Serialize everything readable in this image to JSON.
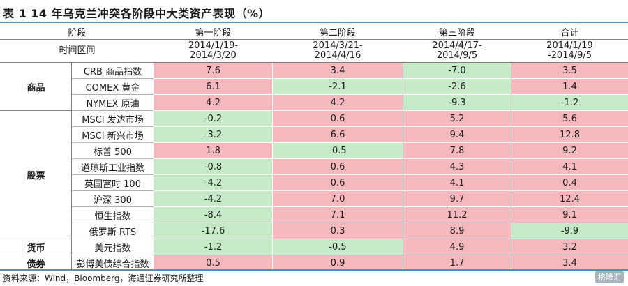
{
  "title": "表 1 14 年乌克兰冲突各阶段中大类资产表现（%）",
  "header": {
    "row1": [
      "阶段",
      "第一阶段",
      "第二阶段",
      "第三阶段",
      "合计"
    ],
    "row2_label": "时间区间",
    "ranges": [
      [
        "2014/1/19-",
        "2014/3/20"
      ],
      [
        "2014/3/21-",
        "2014/4/16"
      ],
      [
        "2014/4/17-",
        "2014/9/5"
      ],
      [
        "2014/1/19",
        "-2014/9/5"
      ]
    ]
  },
  "groups": [
    {
      "name": "商品",
      "rows": [
        {
          "name": "CRB 商品指数",
          "values": [
            "7.6",
            "3.4",
            "-7.0",
            "3.5"
          ]
        },
        {
          "name": "COMEX 黄金",
          "values": [
            "6.1",
            "-2.1",
            "-2.6",
            "1.4"
          ]
        },
        {
          "name": "NYMEX 原油",
          "values": [
            "4.2",
            "4.2",
            "-9.3",
            "-1.2"
          ]
        }
      ]
    },
    {
      "name": "股票",
      "rows": [
        {
          "name": "MSCI 发达市场",
          "values": [
            "-0.2",
            "0.6",
            "5.2",
            "5.6"
          ]
        },
        {
          "name": "MSCI 新兴市场",
          "values": [
            "-3.2",
            "6.6",
            "9.4",
            "12.8"
          ]
        },
        {
          "name": "标普 500",
          "values": [
            "1.8",
            "-0.5",
            "7.8",
            "9.2"
          ]
        },
        {
          "name": "道琼斯工业指数",
          "values": [
            "-0.8",
            "0.6",
            "4.3",
            "4.1"
          ]
        },
        {
          "name": "英国富时 100",
          "values": [
            "-4.2",
            "0.6",
            "4.1",
            "0.4"
          ]
        },
        {
          "name": "沪深 300",
          "values": [
            "-4.2",
            "7.0",
            "9.7",
            "12.4"
          ]
        },
        {
          "name": "恒生指数",
          "values": [
            "-8.4",
            "7.1",
            "11.2",
            "9.1"
          ]
        },
        {
          "name": "俄罗斯 RTS",
          "values": [
            "-17.6",
            "0.3",
            "8.9",
            "-9.9"
          ]
        }
      ]
    },
    {
      "name": "货币",
      "rows": [
        {
          "name": "美元指数",
          "values": [
            "-1.2",
            "-0.5",
            "4.9",
            "3.2"
          ]
        }
      ]
    },
    {
      "name": "债券",
      "rows": [
        {
          "name": "彭博美债综合指数",
          "values": [
            "0.5",
            "0.9",
            "1.7",
            "3.4"
          ]
        }
      ]
    }
  ],
  "source": "资料来源：Wind，Bloomberg，海通证券研究所整理",
  "watermark": "格隆汇",
  "colors": {
    "positive": "#f4b8bd",
    "negative": "#c6eac7",
    "rule": "#5a8ab8"
  }
}
